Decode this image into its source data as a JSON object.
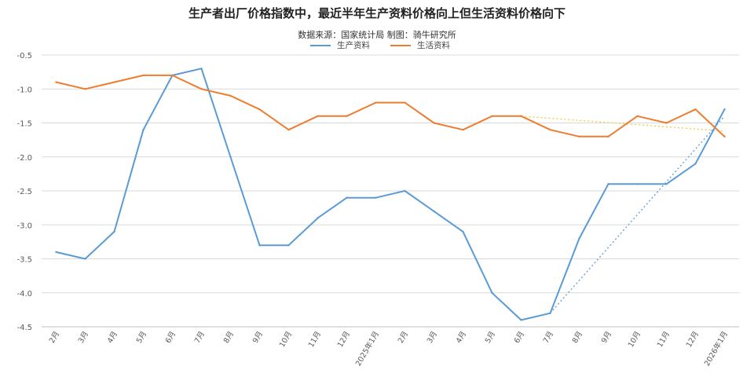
{
  "chart_data": {
    "type": "line",
    "title": "生产者出厂价格指数中，最近半年生产资料价格向上但生活资料价格向下",
    "subtitle": "数据来源：国家统计局   制图：骑牛研究所",
    "legend_position": "top-center",
    "grid": true,
    "ylim": [
      -4.5,
      -0.5
    ],
    "yticks": [
      -0.5,
      -1.0,
      -1.5,
      -2.0,
      -2.5,
      -3.0,
      -3.5,
      -4.0,
      -4.5
    ],
    "categories": [
      "2月",
      "3月",
      "4月",
      "5月",
      "6月",
      "7月",
      "8月",
      "9月",
      "10月",
      "11月",
      "12月",
      "2025年1月",
      "2月",
      "3月",
      "4月",
      "5月",
      "6月",
      "7月",
      "8月",
      "9月",
      "10月",
      "11月",
      "12月",
      "2026年1月"
    ],
    "series": [
      {
        "name": "生产资料",
        "color": "#5B9BD5",
        "values": [
          -3.4,
          -3.5,
          -3.1,
          -1.6,
          -0.8,
          -0.7,
          -2.0,
          -3.3,
          -3.3,
          -2.9,
          -2.6,
          -2.6,
          -2.5,
          -2.8,
          -3.1,
          -4.0,
          -4.4,
          -4.3,
          -3.2,
          -2.4,
          -2.4,
          -2.4,
          -2.1,
          -1.3
        ]
      },
      {
        "name": "生活资料",
        "color": "#ED7D31",
        "values": [
          -0.9,
          -1.0,
          -0.9,
          -0.8,
          -0.8,
          -1.0,
          -1.1,
          -1.3,
          -1.6,
          -1.4,
          -1.4,
          -1.2,
          -1.2,
          -1.5,
          -1.6,
          -1.4,
          -1.4,
          -1.6,
          -1.7,
          -1.7,
          -1.4,
          -1.5,
          -1.3,
          -1.7
        ]
      }
    ],
    "trendlines": [
      {
        "series": "生产资料",
        "color": "#5B9BD5",
        "from_index": 17,
        "from_value": -4.3,
        "to_index": 23,
        "to_value": -1.4
      },
      {
        "series": "生活资料",
        "color": "#F5C842",
        "from_index": 16,
        "from_value": -1.4,
        "to_index": 23,
        "to_value": -1.62
      }
    ]
  }
}
